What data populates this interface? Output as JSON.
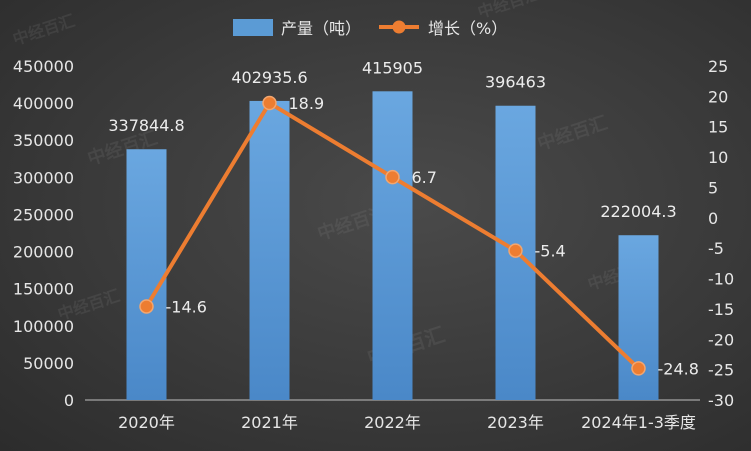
{
  "chart_data": {
    "type": "bar",
    "categories": [
      "2020年",
      "2021年",
      "2022年",
      "2023年",
      "2024年1-3季度"
    ],
    "series": [
      {
        "name": "产量（吨）",
        "type": "bar",
        "axis": "left",
        "values": [
          337844.8,
          402935.6,
          415905,
          396463,
          222004.3
        ],
        "labels": [
          "337844.8",
          "402935.6",
          "415905",
          "396463",
          "222004.3"
        ],
        "color": "#5b9bd5"
      },
      {
        "name": "增长（%）",
        "type": "line",
        "axis": "right",
        "values": [
          -14.6,
          18.9,
          6.7,
          -5.4,
          -24.8
        ],
        "labels": [
          "-14.6",
          "18.9",
          "6.7",
          "-5.4",
          "-24.8"
        ],
        "color": "#ed7d31"
      }
    ],
    "y_left": {
      "range": [
        0,
        450000
      ],
      "ticks": [
        "0",
        "50000",
        "100000",
        "150000",
        "200000",
        "250000",
        "300000",
        "350000",
        "400000",
        "450000"
      ]
    },
    "y_right": {
      "range": [
        -30,
        25
      ],
      "ticks": [
        "-30",
        "-25",
        "-20",
        "-15",
        "-10",
        "-5",
        "0",
        "5",
        "10",
        "15",
        "20",
        "25"
      ]
    },
    "grid": false,
    "legend": "top-center",
    "watermark": "中经百汇"
  }
}
